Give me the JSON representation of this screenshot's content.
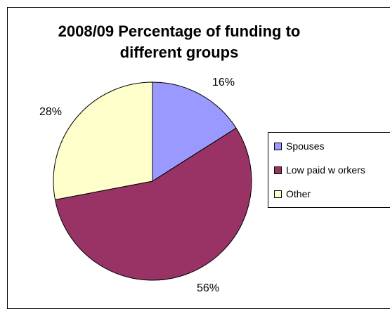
{
  "chart_data": {
    "type": "pie",
    "title_line1": "2008/09 Percentage of funding to",
    "title_line2": "different groups",
    "slices": [
      {
        "name": "Spouses",
        "value": 16,
        "label": "16%",
        "color": "#9999ff"
      },
      {
        "name": "Low  paid w orkers",
        "value": 56,
        "label": "56%",
        "color": "#993366"
      },
      {
        "name": "Other",
        "value": 28,
        "label": "28%",
        "color": "#ffffcc"
      }
    ],
    "legend_position": "right",
    "start_angle": "12 o'clock, clockwise"
  }
}
